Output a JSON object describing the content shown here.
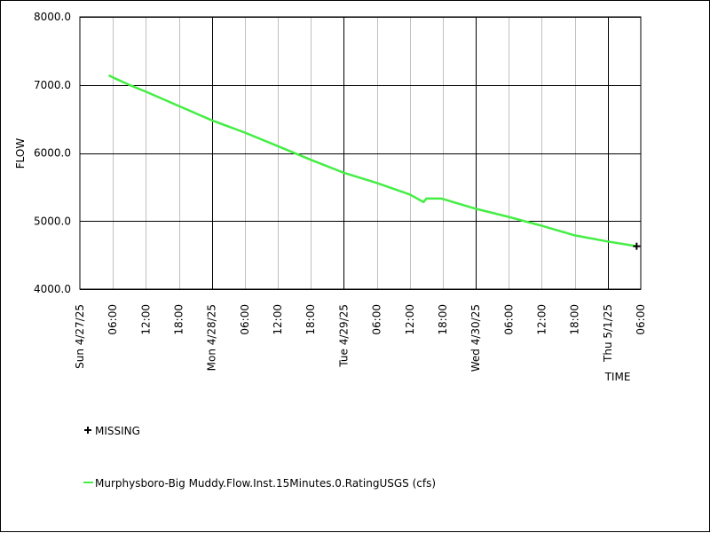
{
  "chart_data": {
    "type": "line",
    "xlabel": "TIME",
    "ylabel": "FLOW",
    "ylim": [
      4000,
      8000
    ],
    "xlim": [
      "2025-04-27 00:00",
      "2025-05-01 06:00"
    ],
    "y_ticks": [
      "4000.0",
      "5000.0",
      "6000.0",
      "7000.0",
      "8000.0"
    ],
    "x_ticks": [
      {
        "t": "2025-04-27 00:00",
        "label": "Sun 4/27/25",
        "major": true
      },
      {
        "t": "2025-04-27 06:00",
        "label": "06:00",
        "major": false
      },
      {
        "t": "2025-04-27 12:00",
        "label": "12:00",
        "major": false
      },
      {
        "t": "2025-04-27 18:00",
        "label": "18:00",
        "major": false
      },
      {
        "t": "2025-04-28 00:00",
        "label": "Mon 4/28/25",
        "major": true
      },
      {
        "t": "2025-04-28 06:00",
        "label": "06:00",
        "major": false
      },
      {
        "t": "2025-04-28 12:00",
        "label": "12:00",
        "major": false
      },
      {
        "t": "2025-04-28 18:00",
        "label": "18:00",
        "major": false
      },
      {
        "t": "2025-04-29 00:00",
        "label": "Tue 4/29/25",
        "major": true
      },
      {
        "t": "2025-04-29 06:00",
        "label": "06:00",
        "major": false
      },
      {
        "t": "2025-04-29 12:00",
        "label": "12:00",
        "major": false
      },
      {
        "t": "2025-04-29 18:00",
        "label": "18:00",
        "major": false
      },
      {
        "t": "2025-04-30 00:00",
        "label": "Wed 4/30/25",
        "major": true
      },
      {
        "t": "2025-04-30 06:00",
        "label": "06:00",
        "major": false
      },
      {
        "t": "2025-04-30 12:00",
        "label": "12:00",
        "major": false
      },
      {
        "t": "2025-04-30 18:00",
        "label": "18:00",
        "major": false
      },
      {
        "t": "2025-05-01 00:00",
        "label": "Thu 5/1/25",
        "major": true
      },
      {
        "t": "2025-05-01 06:00",
        "label": "06:00",
        "major": false
      }
    ],
    "grid": true,
    "series": [
      {
        "name": "Murphysboro-Big Muddy.Flow.Inst.15Minutes.0.RatingUSGS (cfs)",
        "color": "#44ee44",
        "points": [
          [
            "2025-04-27 05:15",
            7140
          ],
          [
            "2025-04-27 06:00",
            7110
          ],
          [
            "2025-04-27 09:00",
            7000
          ],
          [
            "2025-04-27 12:00",
            6900
          ],
          [
            "2025-04-27 18:00",
            6690
          ],
          [
            "2025-04-28 00:00",
            6480
          ],
          [
            "2025-04-28 06:00",
            6300
          ],
          [
            "2025-04-28 12:00",
            6100
          ],
          [
            "2025-04-28 18:00",
            5900
          ],
          [
            "2025-04-29 00:00",
            5710
          ],
          [
            "2025-04-29 06:00",
            5560
          ],
          [
            "2025-04-29 12:00",
            5390
          ],
          [
            "2025-04-29 14:15",
            5290
          ],
          [
            "2025-04-29 14:30",
            5280
          ],
          [
            "2025-04-29 15:00",
            5330
          ],
          [
            "2025-04-29 17:45",
            5330
          ],
          [
            "2025-04-30 00:00",
            5180
          ],
          [
            "2025-04-30 06:00",
            5060
          ],
          [
            "2025-04-30 12:00",
            4930
          ],
          [
            "2025-04-30 18:00",
            4790
          ],
          [
            "2025-05-01 00:00",
            4700
          ],
          [
            "2025-05-01 05:15",
            4630
          ]
        ]
      }
    ],
    "missing_markers": [
      {
        "t": "2025-05-01 05:15",
        "y": 4630
      }
    ],
    "legend": {
      "placement": "bottom-left",
      "missing_label": "MISSING",
      "series_label": "Murphysboro-Big Muddy.Flow.Inst.15Minutes.0.RatingUSGS (cfs)"
    }
  }
}
